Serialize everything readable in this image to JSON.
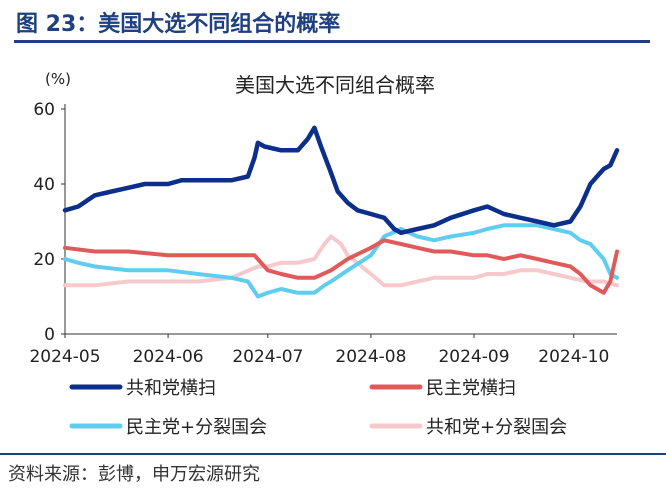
{
  "figure_title": "图 23：美国大选不同组合的概率",
  "source": "资料来源：彭博，申万宏源研究",
  "chart_data": {
    "type": "line",
    "title": "美国大选不同组合概率",
    "unit_label": "(%)",
    "xlabel": "",
    "ylabel": "",
    "ylim": [
      0,
      60
    ],
    "yticks": [
      0,
      20,
      40,
      60
    ],
    "x_start": "2024-05-01",
    "x_end": "2024-10-14",
    "xticks": [
      "2024-05",
      "2024-06",
      "2024-07",
      "2024-08",
      "2024-09",
      "2024-10"
    ],
    "xtick_dates": [
      "2024-05-01",
      "2024-06-01",
      "2024-07-01",
      "2024-08-01",
      "2024-09-01",
      "2024-10-01"
    ],
    "grid": false,
    "legend_position": "bottom",
    "series": [
      {
        "name": "共和党横扫",
        "color": "#0b2f8a",
        "x": [
          "2024-05-01",
          "2024-05-05",
          "2024-05-10",
          "2024-05-15",
          "2024-05-20",
          "2024-05-25",
          "2024-06-01",
          "2024-06-05",
          "2024-06-10",
          "2024-06-15",
          "2024-06-20",
          "2024-06-25",
          "2024-06-27",
          "2024-06-28",
          "2024-06-30",
          "2024-07-05",
          "2024-07-10",
          "2024-07-13",
          "2024-07-15",
          "2024-07-17",
          "2024-07-20",
          "2024-07-22",
          "2024-07-25",
          "2024-07-28",
          "2024-08-01",
          "2024-08-05",
          "2024-08-08",
          "2024-08-10",
          "2024-08-15",
          "2024-08-20",
          "2024-08-25",
          "2024-09-01",
          "2024-09-05",
          "2024-09-10",
          "2024-09-15",
          "2024-09-20",
          "2024-09-25",
          "2024-09-30",
          "2024-10-03",
          "2024-10-06",
          "2024-10-08",
          "2024-10-10",
          "2024-10-12",
          "2024-10-14"
        ],
        "values": [
          33,
          34,
          37,
          38,
          39,
          40,
          40,
          41,
          41,
          41,
          41,
          42,
          47,
          51,
          50,
          49,
          49,
          52,
          55,
          50,
          43,
          38,
          35,
          33,
          32,
          31,
          28,
          27,
          28,
          29,
          31,
          33,
          34,
          32,
          31,
          30,
          29,
          30,
          34,
          40,
          42,
          44,
          45,
          49
        ]
      },
      {
        "name": "民主党横扫",
        "color": "#e05a5a",
        "x": [
          "2024-05-01",
          "2024-05-10",
          "2024-05-20",
          "2024-06-01",
          "2024-06-10",
          "2024-06-20",
          "2024-06-27",
          "2024-07-01",
          "2024-07-05",
          "2024-07-10",
          "2024-07-15",
          "2024-07-20",
          "2024-07-25",
          "2024-08-01",
          "2024-08-05",
          "2024-08-10",
          "2024-08-15",
          "2024-08-20",
          "2024-08-25",
          "2024-09-01",
          "2024-09-05",
          "2024-09-10",
          "2024-09-15",
          "2024-09-20",
          "2024-09-25",
          "2024-09-30",
          "2024-10-03",
          "2024-10-06",
          "2024-10-08",
          "2024-10-10",
          "2024-10-12",
          "2024-10-14"
        ],
        "values": [
          23,
          22,
          22,
          21,
          21,
          21,
          21,
          17,
          16,
          15,
          15,
          17,
          20,
          23,
          25,
          24,
          23,
          22,
          22,
          21,
          21,
          20,
          21,
          20,
          19,
          18,
          16,
          13,
          12,
          11,
          14,
          22
        ]
      },
      {
        "name": "民主党+分裂国会",
        "color": "#5fcdf0",
        "x": [
          "2024-05-01",
          "2024-05-05",
          "2024-05-10",
          "2024-05-20",
          "2024-06-01",
          "2024-06-10",
          "2024-06-20",
          "2024-06-25",
          "2024-06-28",
          "2024-07-01",
          "2024-07-05",
          "2024-07-10",
          "2024-07-15",
          "2024-07-18",
          "2024-07-20",
          "2024-07-25",
          "2024-08-01",
          "2024-08-05",
          "2024-08-10",
          "2024-08-15",
          "2024-08-20",
          "2024-08-25",
          "2024-09-01",
          "2024-09-05",
          "2024-09-10",
          "2024-09-15",
          "2024-09-20",
          "2024-09-25",
          "2024-09-30",
          "2024-10-03",
          "2024-10-06",
          "2024-10-08",
          "2024-10-10",
          "2024-10-12",
          "2024-10-14"
        ],
        "values": [
          20,
          19,
          18,
          17,
          17,
          16,
          15,
          14,
          10,
          11,
          12,
          11,
          11,
          13,
          14,
          17,
          21,
          26,
          28,
          26,
          25,
          26,
          27,
          28,
          29,
          29,
          29,
          28,
          27,
          25,
          24,
          22,
          20,
          16,
          15
        ]
      },
      {
        "name": "共和党+分裂国会",
        "color": "#f6c9cc",
        "x": [
          "2024-05-01",
          "2024-05-10",
          "2024-05-20",
          "2024-06-01",
          "2024-06-10",
          "2024-06-20",
          "2024-06-28",
          "2024-07-01",
          "2024-07-05",
          "2024-07-10",
          "2024-07-15",
          "2024-07-18",
          "2024-07-20",
          "2024-07-23",
          "2024-07-25",
          "2024-08-01",
          "2024-08-05",
          "2024-08-10",
          "2024-08-15",
          "2024-08-20",
          "2024-08-25",
          "2024-09-01",
          "2024-09-05",
          "2024-09-10",
          "2024-09-15",
          "2024-09-20",
          "2024-09-25",
          "2024-09-30",
          "2024-10-05",
          "2024-10-10",
          "2024-10-14"
        ],
        "values": [
          13,
          13,
          14,
          14,
          14,
          15,
          18,
          18,
          19,
          19,
          20,
          24,
          26,
          24,
          21,
          16,
          13,
          13,
          14,
          15,
          15,
          15,
          16,
          16,
          17,
          17,
          16,
          15,
          14,
          14,
          13
        ]
      }
    ]
  }
}
